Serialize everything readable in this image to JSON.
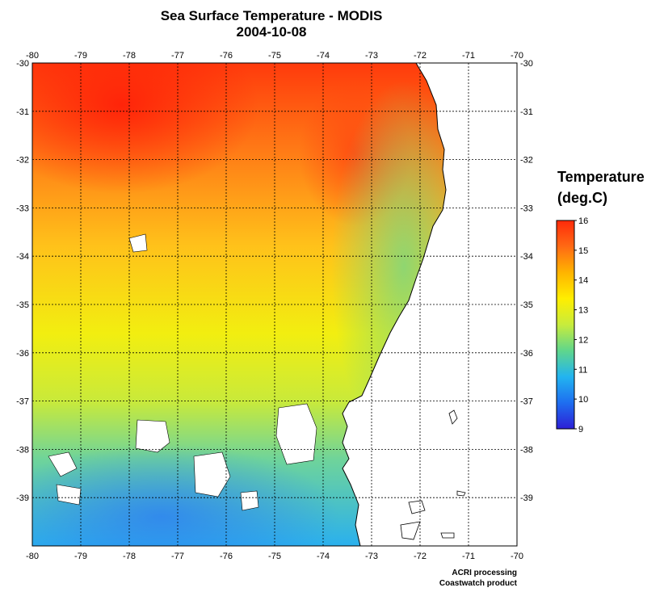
{
  "title": {
    "line1": "Sea Surface Temperature - MODIS",
    "line2": "2004-10-08"
  },
  "map": {
    "lon_range": [
      -80,
      -70
    ],
    "lat_range": [
      -40,
      -30
    ],
    "lon_ticks": [
      "-80",
      "-79",
      "-78",
      "-77",
      "-76",
      "-75",
      "-74",
      "-73",
      "-72",
      "-71",
      "-70"
    ],
    "lat_ticks": [
      "-30",
      "-31",
      "-32",
      "-33",
      "-34",
      "-35",
      "-36",
      "-37",
      "-38",
      "-39"
    ],
    "grid": "dotted",
    "land_color": "#ffffff",
    "coast_color": "#000000"
  },
  "legend": {
    "title_line1": "Temperature",
    "title_line2": "(deg.C)",
    "labels": [
      "16",
      "15",
      "14",
      "13",
      "12",
      "11",
      "10",
      "9"
    ],
    "min": 9,
    "max": 16,
    "colors": [
      "#2d1fd6",
      "#1e6ef0",
      "#22b4f0",
      "#5fd68c",
      "#c8ec3c",
      "#ffee00",
      "#ffb400",
      "#ff6a14",
      "#ff2a0a"
    ]
  },
  "credit": {
    "line1": "ACRI processing",
    "line2": "Coastwatch product"
  }
}
